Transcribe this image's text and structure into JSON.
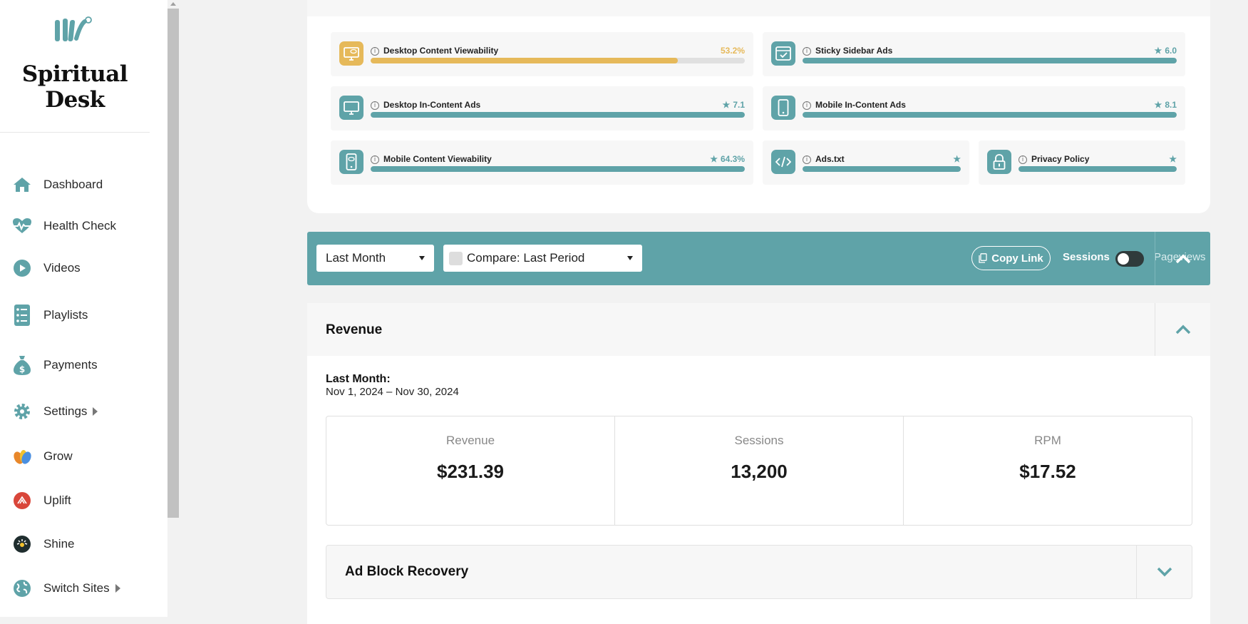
{
  "brand": {
    "name_line1": "Spiritual",
    "name_line2": "Desk",
    "color": "#5fa3a8"
  },
  "sidebar": {
    "items": [
      {
        "label": "Dashboard",
        "icon": "home-icon"
      },
      {
        "label": "Health Check",
        "icon": "heartbeat-icon"
      },
      {
        "label": "Videos",
        "icon": "play-icon"
      },
      {
        "label": "Playlists",
        "icon": "list-icon"
      },
      {
        "label": "Payments",
        "icon": "money-bag-icon"
      },
      {
        "label": "Settings",
        "icon": "gear-icon",
        "has_submenu": true
      },
      {
        "label": "Grow",
        "icon": "grow-logo-icon"
      },
      {
        "label": "Uplift",
        "icon": "uplift-logo-icon"
      },
      {
        "label": "Shine",
        "icon": "shine-logo-icon"
      },
      {
        "label": "Switch Sites",
        "icon": "globe-icon",
        "has_submenu": true
      }
    ]
  },
  "health_checks": [
    {
      "name": "Desktop Content Viewability",
      "value": "53.2%",
      "fill": 0.82,
      "status": "warning",
      "icon": "monitor-eye-icon"
    },
    {
      "name": "Sticky Sidebar Ads",
      "value": "6.0",
      "fill": 1.0,
      "status": "good",
      "icon": "sidebar-window-icon",
      "star": true
    },
    {
      "name": "Desktop In-Content Ads",
      "value": "7.1",
      "fill": 1.0,
      "status": "good",
      "icon": "monitor-icon",
      "star": true
    },
    {
      "name": "Mobile In-Content Ads",
      "value": "8.1",
      "fill": 1.0,
      "status": "good",
      "icon": "mobile-icon",
      "star": true
    },
    {
      "name": "Mobile Content Viewability",
      "value": "64.3%",
      "fill": 1.0,
      "status": "good",
      "icon": "mobile-eye-icon",
      "star": true
    },
    {
      "name": "Ads.txt",
      "value": "",
      "fill": 1.0,
      "status": "good",
      "icon": "code-icon",
      "star": true
    },
    {
      "name": "Privacy Policy",
      "value": "",
      "fill": 1.0,
      "status": "good",
      "icon": "lock-icon",
      "star": true
    }
  ],
  "toolbar": {
    "date_range": "Last Month",
    "compare": "Compare: Last Period",
    "copy_link": "Copy Link",
    "toggle_left": "Sessions",
    "toggle_right": "Pageviews"
  },
  "revenue": {
    "title": "Revenue",
    "period_label": "Last Month:",
    "period_range": "Nov 1, 2024 – Nov 30, 2024",
    "stats": [
      {
        "label": "Revenue",
        "value": "$231.39"
      },
      {
        "label": "Sessions",
        "value": "13,200"
      },
      {
        "label": "RPM",
        "value": "$17.52"
      }
    ]
  },
  "ad_block": {
    "title": "Ad Block Recovery"
  }
}
